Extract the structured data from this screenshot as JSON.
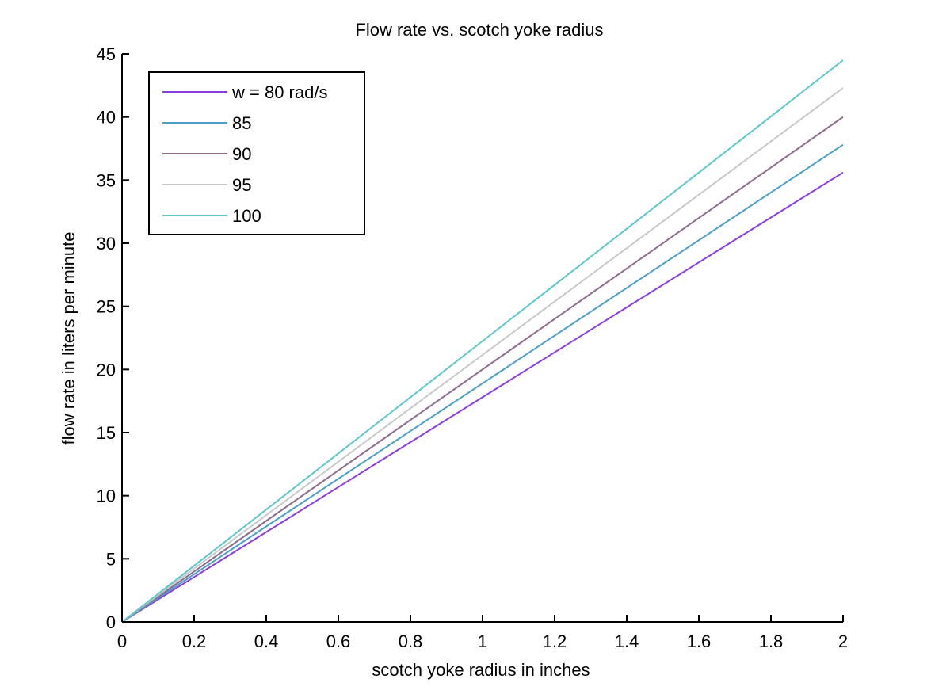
{
  "chart_data": {
    "type": "line",
    "title": "Flow rate vs. scotch yoke radius",
    "xlabel": "scotch yoke radius in inches",
    "ylabel": "flow rate in liters per minute",
    "xlim": [
      0,
      2
    ],
    "ylim": [
      0,
      45
    ],
    "xticks": [
      0,
      0.2,
      0.4,
      0.6,
      0.8,
      1,
      1.2,
      1.4,
      1.6,
      1.8,
      2
    ],
    "xtick_labels": [
      "0",
      "0.2",
      "0.4",
      "0.6",
      "0.8",
      "1",
      "1.2",
      "1.4",
      "1.6",
      "1.8",
      "2"
    ],
    "yticks": [
      0,
      5,
      10,
      15,
      20,
      25,
      30,
      35,
      40,
      45
    ],
    "ytick_labels": [
      "0",
      "5",
      "10",
      "15",
      "20",
      "25",
      "30",
      "35",
      "40",
      "45"
    ],
    "grid": false,
    "legend_position": "upper left",
    "x": [
      0,
      0.2,
      0.4,
      0.6,
      0.8,
      1.0,
      1.2,
      1.4,
      1.6,
      1.8,
      2.0
    ],
    "series": [
      {
        "name": "w = 80 rad/s",
        "color": "#8a3ee0",
        "values": [
          0,
          3.56,
          7.12,
          10.68,
          14.24,
          17.8,
          21.36,
          24.92,
          28.48,
          32.04,
          35.6
        ]
      },
      {
        "name": "85",
        "color": "#4a9ec8",
        "values": [
          0,
          3.78,
          7.56,
          11.34,
          15.12,
          18.9,
          22.68,
          26.46,
          30.24,
          34.02,
          37.8
        ]
      },
      {
        "name": "90",
        "color": "#8c6b8e",
        "values": [
          0,
          4.0,
          8.0,
          12.0,
          16.0,
          20.0,
          24.0,
          28.0,
          32.0,
          36.0,
          40.0
        ]
      },
      {
        "name": "95",
        "color": "#c8c8c8",
        "values": [
          0,
          4.23,
          8.46,
          12.69,
          16.92,
          21.15,
          25.38,
          29.61,
          33.84,
          38.07,
          42.3
        ]
      },
      {
        "name": "100",
        "color": "#5cc8cc",
        "values": [
          0,
          4.45,
          8.9,
          13.35,
          17.8,
          22.25,
          26.7,
          31.15,
          35.6,
          40.05,
          44.5
        ]
      }
    ]
  }
}
